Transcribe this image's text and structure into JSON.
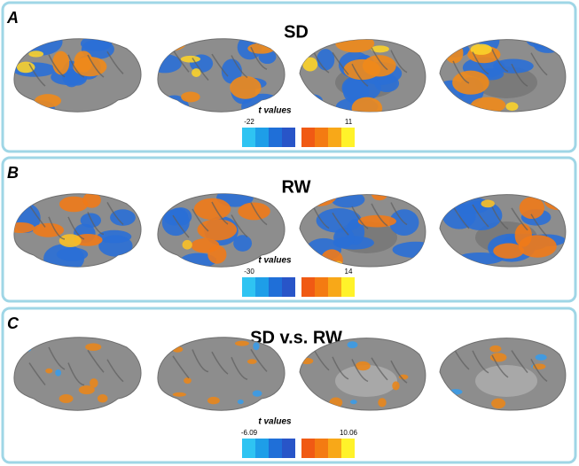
{
  "panels": [
    {
      "label": "A",
      "title": "SD",
      "colorbar": {
        "label": "t values",
        "min": "-22",
        "max": "11"
      }
    },
    {
      "label": "B",
      "title": "RW",
      "colorbar": {
        "label": "t values",
        "min": "-30",
        "max": "14"
      }
    },
    {
      "label": "C",
      "title": "SD v.s. RW",
      "colorbar": {
        "label": "t values",
        "min": "-6.09",
        "max": "10.06"
      }
    }
  ]
}
